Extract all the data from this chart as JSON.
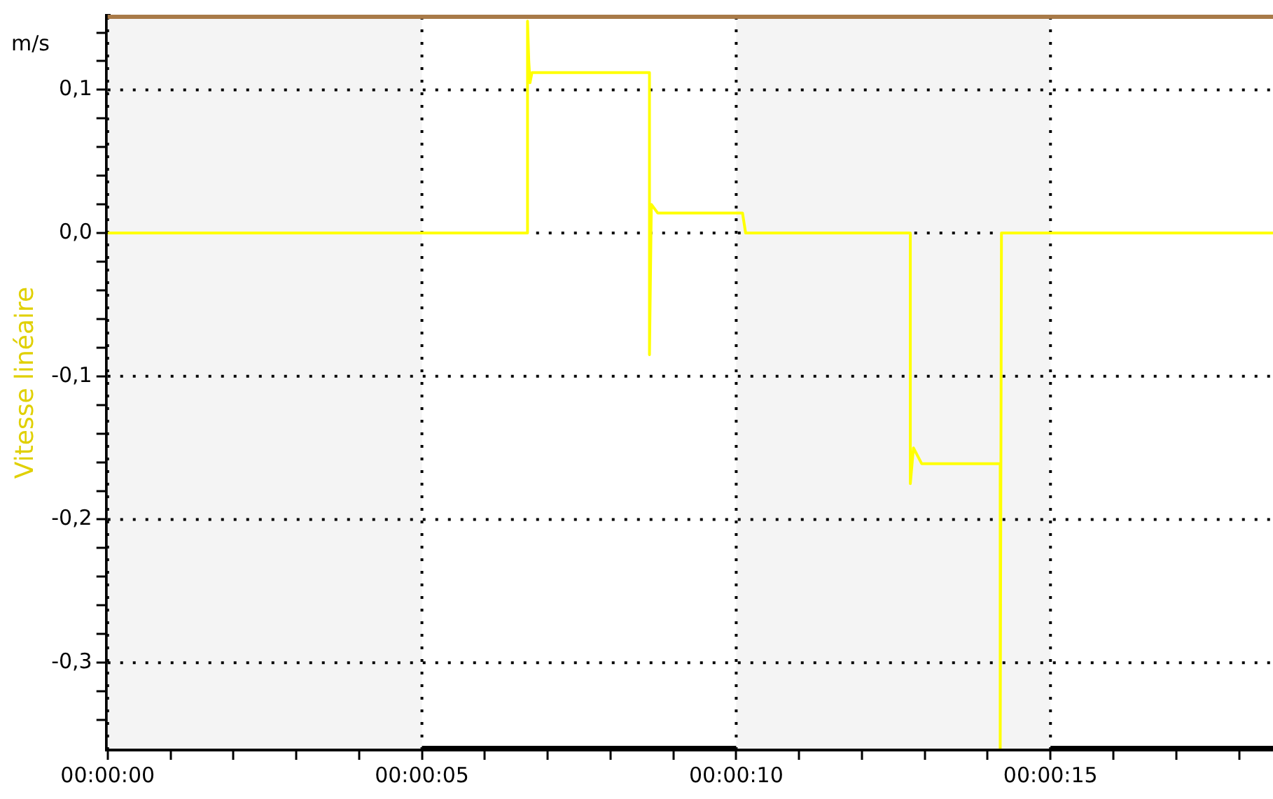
{
  "chart_data": {
    "type": "line",
    "ylabel": "Vitesse linéaire",
    "annotations": [
      "m/s"
    ],
    "series": [
      {
        "color": "#ffff00",
        "x": [
          0,
          6.68,
          6.68,
          6.7,
          6.72,
          6.75,
          8.62,
          8.62,
          8.65,
          8.75,
          10.1,
          10.15,
          12.77,
          12.77,
          12.82,
          12.95,
          14.2,
          14.2,
          14.22,
          18.54
        ],
        "values": [
          0,
          0,
          0.148,
          0.12,
          0.105,
          0.112,
          0.112,
          -0.085,
          0.02,
          0.014,
          0.014,
          0,
          0,
          -0.175,
          -0.15,
          -0.161,
          -0.161,
          -0.36,
          0,
          0
        ]
      }
    ],
    "xlim": [
      0,
      18.54
    ],
    "xticks": [
      {
        "value": 0,
        "label": "00:00:00"
      },
      {
        "value": 1,
        "label": null
      },
      {
        "value": 2,
        "label": null
      },
      {
        "value": 3,
        "label": null
      },
      {
        "value": 4,
        "label": null
      },
      {
        "value": 5,
        "label": "00:00:05"
      },
      {
        "value": 6,
        "label": null
      },
      {
        "value": 7,
        "label": null
      },
      {
        "value": 8,
        "label": null
      },
      {
        "value": 9,
        "label": null
      },
      {
        "value": 10,
        "label": "00:00:10"
      },
      {
        "value": 11,
        "label": null
      },
      {
        "value": 12,
        "label": null
      },
      {
        "value": 13,
        "label": null
      },
      {
        "value": 14,
        "label": null
      },
      {
        "value": 15,
        "label": "00:00:15"
      },
      {
        "value": 16,
        "label": null
      },
      {
        "value": 17,
        "label": null
      },
      {
        "value": 18,
        "label": null
      }
    ],
    "ylim": [
      -0.36,
      0.151
    ],
    "yticks": [
      {
        "value": -0.34,
        "label": null
      },
      {
        "value": -0.32,
        "label": null
      },
      {
        "value": -0.3,
        "label": "-0,3"
      },
      {
        "value": -0.28,
        "label": null
      },
      {
        "value": -0.26,
        "label": null
      },
      {
        "value": -0.24,
        "label": null
      },
      {
        "value": -0.22,
        "label": null
      },
      {
        "value": -0.2,
        "label": "-0,2"
      },
      {
        "value": -0.18,
        "label": null
      },
      {
        "value": -0.16,
        "label": null
      },
      {
        "value": -0.14,
        "label": null
      },
      {
        "value": -0.12,
        "label": null
      },
      {
        "value": -0.1,
        "label": "-0,1"
      },
      {
        "value": -0.08,
        "label": null
      },
      {
        "value": -0.06,
        "label": null
      },
      {
        "value": -0.04,
        "label": null
      },
      {
        "value": -0.02,
        "label": null
      },
      {
        "value": 0,
        "label": "0,0"
      },
      {
        "value": 0.02,
        "label": null
      },
      {
        "value": 0.04,
        "label": null
      },
      {
        "value": 0.06,
        "label": null
      },
      {
        "value": 0.08,
        "label": null
      },
      {
        "value": 0.1,
        "label": "0,1"
      },
      {
        "value": 0.12,
        "label": null
      },
      {
        "value": 0.14,
        "label": null
      }
    ],
    "bands": [
      {
        "axis": "x",
        "from": 0,
        "to": 5,
        "color": "#f4f4f4"
      },
      {
        "axis": "x",
        "from": 10,
        "to": 15,
        "color": "#f4f4f4"
      }
    ],
    "grid": true,
    "legend": false,
    "marker": "none",
    "line_style": "solid"
  }
}
